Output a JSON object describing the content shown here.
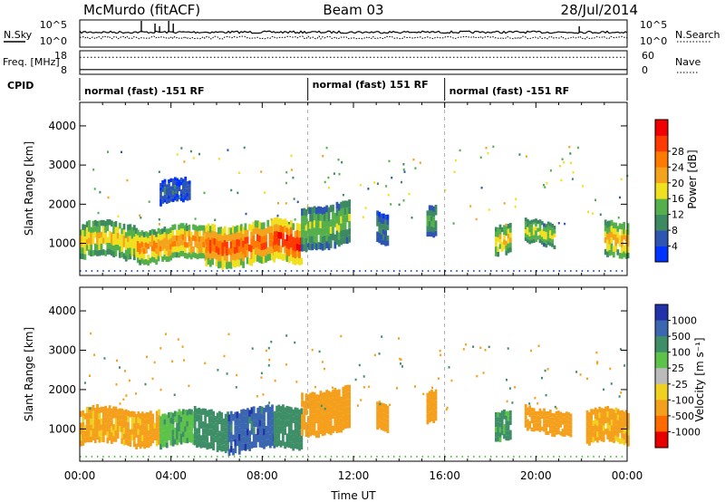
{
  "header": {
    "station": "McMurdo (fitACF)",
    "beam": "Beam 03",
    "date": "28/Jul/2014"
  },
  "colors": {
    "range_gate_ticks": "#000000",
    "guide": "#9a9a9a"
  },
  "chart_data": [
    {
      "type": "line",
      "panel": "noise",
      "left_label": "N.Sky",
      "right_label": "N.Search",
      "y_ticks_left": [
        "10^5",
        "10^0"
      ],
      "y_ticks_right": [
        "10^5",
        "10^0"
      ],
      "series": [
        {
          "name": "N.Sky",
          "style": "solid",
          "level_fraction": 0.55
        },
        {
          "name": "N.Search",
          "style": "dotted",
          "level_fraction": 0.35
        }
      ],
      "spikes_x_hours": [
        2.7,
        3.3,
        3.5,
        3.9,
        4.1,
        21.9
      ]
    },
    {
      "type": "line",
      "panel": "frequency",
      "left_label": "Freq. [MHz]",
      "right_label": "Nave",
      "y_ticks_left": [
        "18",
        "8"
      ],
      "y_ticks_right": [
        "60",
        "0"
      ],
      "series": [
        {
          "name": "Nave",
          "style": "dotted",
          "level_fraction": 0.72
        },
        {
          "name": "Freq",
          "style": "solid",
          "level_fraction": 0.2
        }
      ]
    },
    {
      "type": "table",
      "panel": "cpid",
      "left_label": "CPID",
      "segments": [
        {
          "start_h": 0,
          "end_h": 10,
          "label": "normal (fast) -151 RF"
        },
        {
          "start_h": 10,
          "end_h": 16,
          "label": "normal (fast) 151 RF"
        },
        {
          "start_h": 16,
          "end_h": 24,
          "label": "normal (fast) -151 RF"
        }
      ]
    },
    {
      "type": "heatmap",
      "panel": "power",
      "ylabel": "Slant Range [km]",
      "yticks": [
        1000,
        2000,
        3000,
        4000
      ],
      "ylim": [
        180,
        4600
      ],
      "xlim_hours": [
        0,
        24
      ],
      "colorbar": {
        "label": "Power [dB]",
        "ticks": [
          "4",
          "8",
          "12",
          "16",
          "20",
          "24",
          "28"
        ],
        "colors": [
          "#0033ff",
          "#2f55b3",
          "#3d8a62",
          "#55b04c",
          "#f0e020",
          "#f3a31c",
          "#ff7a00",
          "#ff3a00",
          "#f00000"
        ]
      },
      "blobs": [
        {
          "t0": 0.0,
          "t1": 2.5,
          "r_low": 600,
          "r_high": 1500,
          "intensity": 18
        },
        {
          "t0": 2.5,
          "t1": 5.5,
          "r_low": 550,
          "r_high": 1400,
          "intensity": 22
        },
        {
          "t0": 5.5,
          "t1": 8.5,
          "r_low": 450,
          "r_high": 1500,
          "intensity": 26
        },
        {
          "t0": 8.5,
          "t1": 9.7,
          "r_low": 500,
          "r_high": 1550,
          "intensity": 29
        },
        {
          "t0": 9.7,
          "t1": 11.8,
          "r_low": 900,
          "r_high": 2000,
          "intensity": 14
        },
        {
          "t0": 13.0,
          "t1": 13.5,
          "r_low": 1000,
          "r_high": 1800,
          "intensity": 8
        },
        {
          "t0": 15.2,
          "t1": 15.6,
          "r_low": 1100,
          "r_high": 1900,
          "intensity": 12
        },
        {
          "t0": 18.2,
          "t1": 18.9,
          "r_low": 700,
          "r_high": 1450,
          "intensity": 18
        },
        {
          "t0": 19.5,
          "t1": 20.8,
          "r_low": 950,
          "r_high": 1550,
          "intensity": 16
        },
        {
          "t0": 23.0,
          "t1": 24.0,
          "r_low": 600,
          "r_high": 1500,
          "intensity": 20
        },
        {
          "t0": 3.5,
          "t1": 4.8,
          "r_low": 2000,
          "r_high": 2600,
          "intensity": 6
        }
      ]
    },
    {
      "type": "heatmap",
      "panel": "velocity",
      "ylabel": "Slant Range [km]",
      "yticks": [
        1000,
        2000,
        3000,
        4000
      ],
      "ylim": [
        180,
        4600
      ],
      "xlim_hours": [
        0,
        24
      ],
      "xticks": [
        "00:00",
        "04:00",
        "08:00",
        "12:00",
        "16:00",
        "20:00",
        "00:00"
      ],
      "xlabel": "Time UT",
      "colorbar": {
        "label": "Velocity [m s⁻¹]",
        "ticks": [
          "1000",
          "500",
          "100",
          "25",
          "-25",
          "-100",
          "-500",
          "-1000"
        ],
        "colors": [
          "#2233aa",
          "#3b67b0",
          "#3e8e68",
          "#5cc24a",
          "#bbbbbb",
          "#f0d020",
          "#f5a01c",
          "#ff6a00",
          "#e80000"
        ]
      },
      "blobs": [
        {
          "t0": 0.0,
          "t1": 3.5,
          "r_low": 600,
          "r_high": 1500,
          "intensity": -120
        },
        {
          "t0": 3.5,
          "t1": 5.0,
          "r_low": 550,
          "r_high": 1400,
          "intensity": 80
        },
        {
          "t0": 5.0,
          "t1": 6.5,
          "r_low": 500,
          "r_high": 1500,
          "intensity": 150
        },
        {
          "t0": 6.5,
          "t1": 8.5,
          "r_low": 450,
          "r_high": 1500,
          "intensity": 700
        },
        {
          "t0": 8.5,
          "t1": 9.7,
          "r_low": 500,
          "r_high": 1550,
          "intensity": 200
        },
        {
          "t0": 9.7,
          "t1": 11.8,
          "r_low": 900,
          "r_high": 2000,
          "intensity": -150
        },
        {
          "t0": 13.0,
          "t1": 13.5,
          "r_low": 1000,
          "r_high": 1700,
          "intensity": -150
        },
        {
          "t0": 15.2,
          "t1": 15.6,
          "r_low": 1100,
          "r_high": 1900,
          "intensity": -150
        },
        {
          "t0": 18.2,
          "t1": 18.9,
          "r_low": 700,
          "r_high": 1450,
          "intensity": 120
        },
        {
          "t0": 19.5,
          "t1": 21.5,
          "r_low": 900,
          "r_high": 1500,
          "intensity": -150
        },
        {
          "t0": 22.2,
          "t1": 24.0,
          "r_low": 600,
          "r_high": 1450,
          "intensity": -120
        }
      ]
    }
  ]
}
